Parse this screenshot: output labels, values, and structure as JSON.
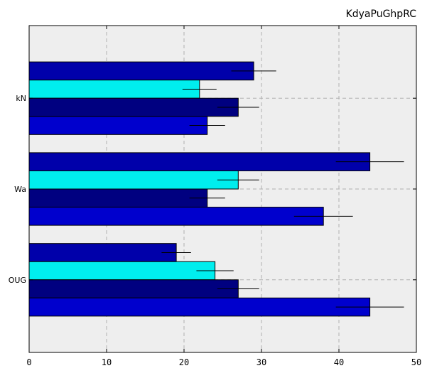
{
  "chart_data": {
    "type": "bar",
    "orientation": "horizontal",
    "title": "KdyaPuGhpRC",
    "xlabel": "",
    "ylabel": "",
    "xlim": [
      0,
      50
    ],
    "xticks": [
      0,
      10,
      20,
      30,
      40,
      50
    ],
    "grid": true,
    "categories": [
      "kN",
      "Wa",
      "OUG"
    ],
    "series": [
      {
        "color": "#0000aa",
        "values": [
          29,
          44,
          19
        ],
        "errors": [
          2.9,
          4.4,
          1.9
        ]
      },
      {
        "color": "#00eeee",
        "values": [
          22,
          27,
          24
        ],
        "errors": [
          2.2,
          2.7,
          2.4
        ]
      },
      {
        "color": "#000080",
        "values": [
          27,
          23,
          27
        ],
        "errors": [
          2.7,
          2.3,
          2.7
        ]
      },
      {
        "color": "#0000cd",
        "values": [
          23,
          38,
          44
        ],
        "errors": [
          2.3,
          3.8,
          4.4
        ]
      }
    ]
  }
}
